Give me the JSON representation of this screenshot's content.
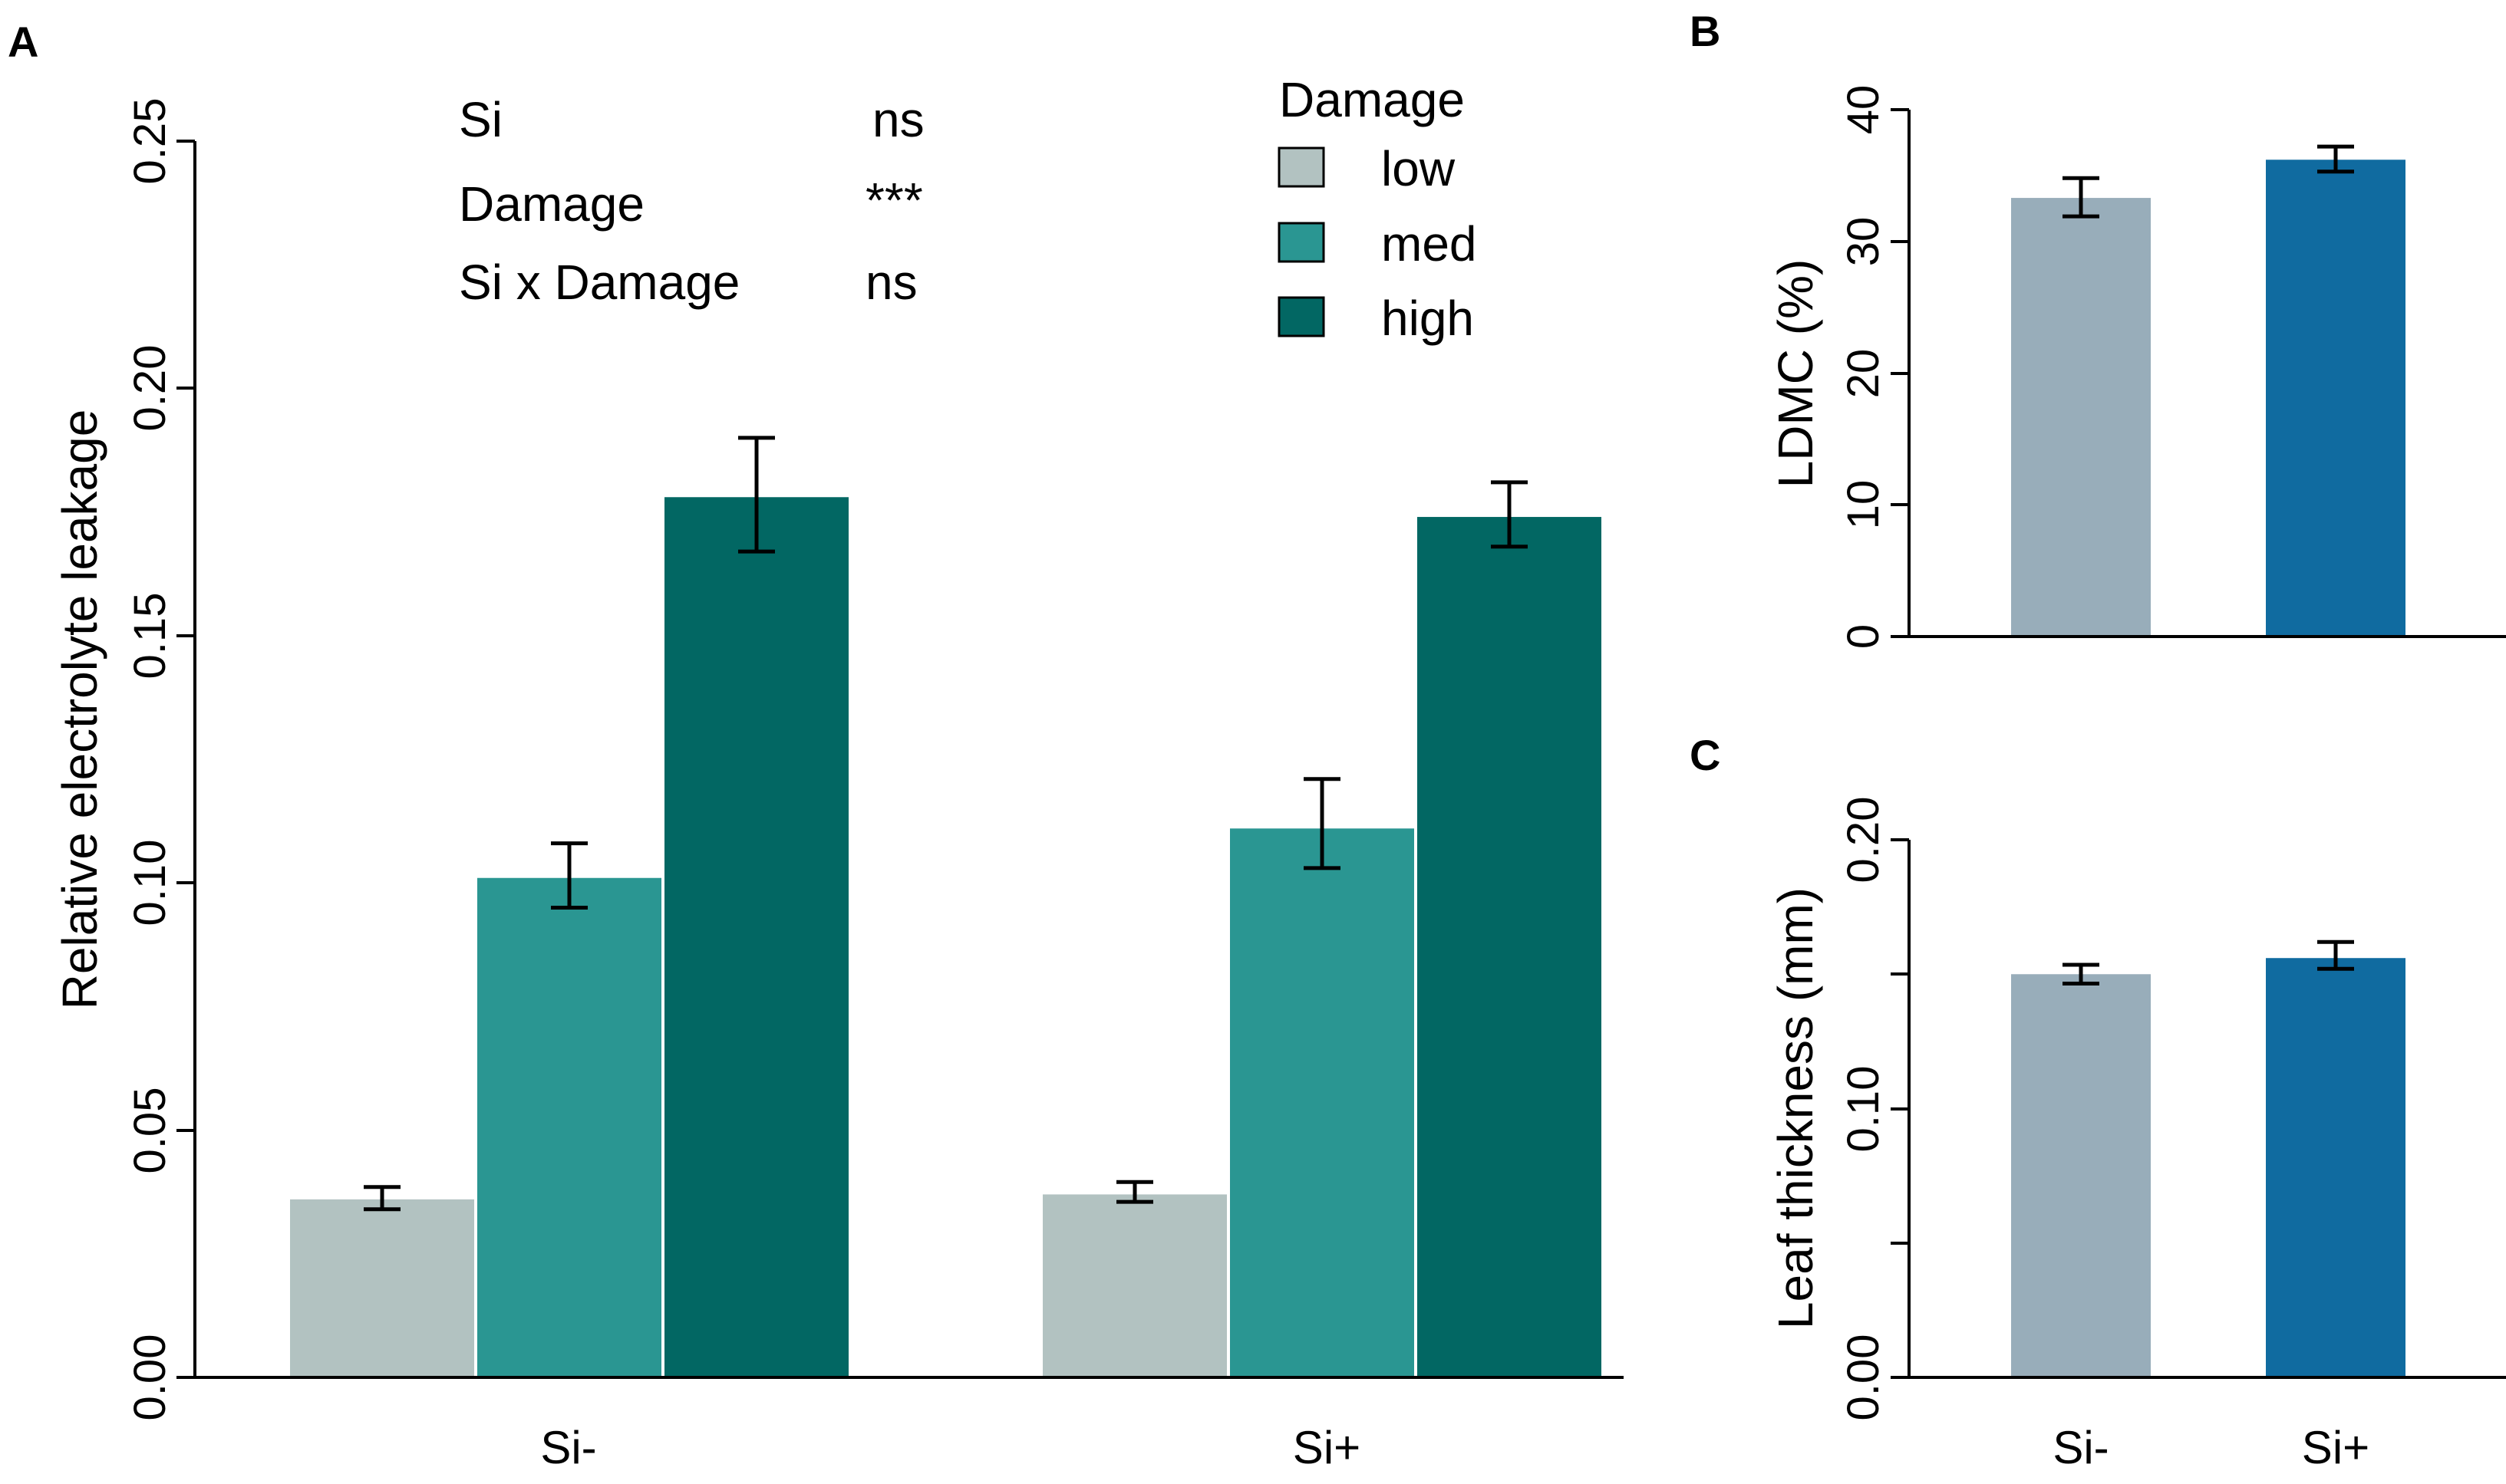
{
  "chart_data": [
    {
      "panel": "A",
      "type": "bar",
      "ylabel": "Relative electrolyte leakage",
      "xlabel": "",
      "categories": [
        "Si-",
        "Si+"
      ],
      "ylim": [
        0,
        0.25
      ],
      "yticks": [
        0,
        0.05,
        0.1,
        0.15,
        0.2,
        0.25
      ],
      "ytick_labels": [
        "0.00",
        "0.05",
        "0.10",
        "0.15",
        "0.20",
        "0.25"
      ],
      "legend": {
        "title": "Damage",
        "entries": [
          "low",
          "med",
          "high"
        ],
        "placement": "top-right"
      },
      "series": [
        {
          "name": "low",
          "color": "#B2C2C1",
          "values": [
            0.036,
            0.037
          ],
          "err_low": [
            0.034,
            0.0355
          ],
          "err_high": [
            0.0385,
            0.0395
          ]
        },
        {
          "name": "med",
          "color": "#2A9692",
          "values": [
            0.101,
            0.111
          ],
          "err_low": [
            0.095,
            0.103
          ],
          "err_high": [
            0.108,
            0.121
          ]
        },
        {
          "name": "high",
          "color": "#026763",
          "values": [
            0.178,
            0.174
          ],
          "err_low": [
            0.167,
            0.168
          ],
          "err_high": [
            0.19,
            0.181
          ]
        }
      ],
      "stats_annotation": [
        {
          "term": "Si",
          "result": "ns"
        },
        {
          "term": "Damage",
          "result": "***"
        },
        {
          "term": "Si x Damage",
          "result": "ns"
        }
      ]
    },
    {
      "panel": "B",
      "type": "bar",
      "ylabel": "LDMC (%)",
      "xlabel": "",
      "categories": [
        "Si-",
        "Si+"
      ],
      "ylim": [
        0,
        40
      ],
      "yticks": [
        0,
        10,
        20,
        30,
        40
      ],
      "ytick_labels": [
        "0",
        "10",
        "20",
        "30",
        "40"
      ],
      "series": [
        {
          "name": "LDMC",
          "colors": [
            "#98ADBA",
            "#106BA0"
          ],
          "values": [
            33.3,
            36.2
          ],
          "err_low": [
            31.9,
            35.3
          ],
          "err_high": [
            34.8,
            37.2
          ]
        }
      ]
    },
    {
      "panel": "C",
      "type": "bar",
      "ylabel": "Leaf thickness (mm)",
      "xlabel": "",
      "categories": [
        "Si-",
        "Si+"
      ],
      "ylim": [
        0,
        0.2
      ],
      "yticks": [
        0,
        0.05,
        0.1,
        0.15,
        0.2
      ],
      "ytick_labels": [
        "0.00",
        "",
        "0.10",
        "",
        "0.20"
      ],
      "series": [
        {
          "name": "Leaf thickness",
          "colors": [
            "#98ADBA",
            "#106BA0"
          ],
          "values": [
            0.15,
            0.156
          ],
          "err_low": [
            0.1465,
            0.152
          ],
          "err_high": [
            0.1535,
            0.162
          ]
        }
      ]
    }
  ]
}
